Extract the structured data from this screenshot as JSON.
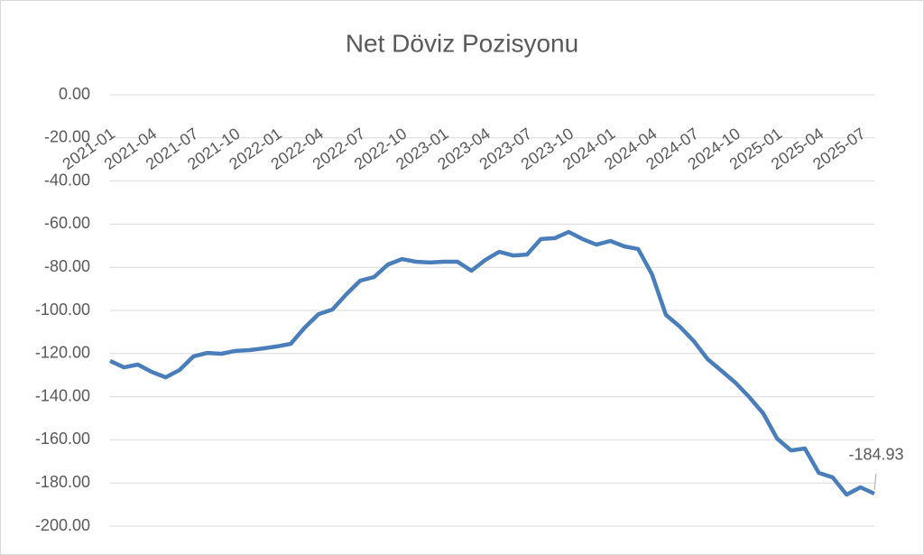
{
  "chart_data": {
    "type": "line",
    "title": "Net Döviz Pozisyonu",
    "categories": [
      "2021-01",
      null,
      null,
      "2021-04",
      null,
      null,
      "2021-07",
      null,
      null,
      "2021-10",
      null,
      null,
      "2022-01",
      null,
      null,
      "2022-04",
      null,
      null,
      "2022-07",
      null,
      null,
      "2022-10",
      null,
      null,
      "2023-01",
      null,
      null,
      "2023-04",
      null,
      null,
      "2023-07",
      null,
      null,
      "2023-10",
      null,
      null,
      "2024-01",
      null,
      null,
      "2024-04",
      null,
      null,
      "2024-07",
      null,
      null,
      "2024-10",
      null,
      null,
      "2025-01",
      null,
      null,
      "2025-04",
      null,
      null,
      "2025-07",
      null
    ],
    "series": [
      {
        "color": "#4a7ebb",
        "values": [
          -123.4,
          -126.4,
          -125.1,
          -128.5,
          -131,
          -127.6,
          -121.3,
          -119.7,
          -120.1,
          -118.8,
          -118.4,
          -117.6,
          -116.7,
          -115.5,
          -108,
          -101.7,
          -99.6,
          -92.5,
          -86.2,
          -84.5,
          -78.7,
          -76.2,
          -77.4,
          -77.8,
          -77.4,
          -77.4,
          -81.6,
          -76.6,
          -72.8,
          -74.5,
          -74.1,
          -66.9,
          -66.5,
          -63.6,
          -66.9,
          -69.5,
          -67.8,
          -70.3,
          -71.5,
          -83.3,
          -102.1,
          -107.5,
          -114.2,
          -122.6,
          -128,
          -133.5,
          -140.2,
          -147.7,
          -159.4,
          -164.9,
          -164,
          -175.3,
          -177.4,
          -185.4,
          -182,
          -184.93
        ],
        "value_labels": [
          null,
          null,
          null,
          null,
          null,
          null,
          null,
          null,
          null,
          null,
          null,
          null,
          null,
          null,
          null,
          null,
          null,
          null,
          null,
          null,
          null,
          null,
          null,
          null,
          null,
          null,
          null,
          null,
          null,
          null,
          null,
          null,
          null,
          null,
          null,
          null,
          null,
          null,
          null,
          null,
          null,
          null,
          null,
          null,
          null,
          null,
          null,
          null,
          null,
          null,
          null,
          null,
          null,
          null,
          null,
          "-184.93"
        ]
      }
    ],
    "ylim": [
      0,
      -200
    ],
    "yticks": [
      {
        "value": 0,
        "label": "0.00"
      },
      {
        "value": -20,
        "label": "-20.00"
      },
      {
        "value": -40,
        "label": "-40.00"
      },
      {
        "value": -60,
        "label": "-60.00"
      },
      {
        "value": -80,
        "label": "-80.00"
      },
      {
        "value": -100,
        "label": "-100.00"
      },
      {
        "value": -120,
        "label": "-120.00"
      },
      {
        "value": -140,
        "label": "-140.00"
      },
      {
        "value": -160,
        "label": "-160.00"
      },
      {
        "value": -180,
        "label": "-180.00"
      },
      {
        "value": -200,
        "label": "-200.00"
      }
    ],
    "grid": true
  }
}
